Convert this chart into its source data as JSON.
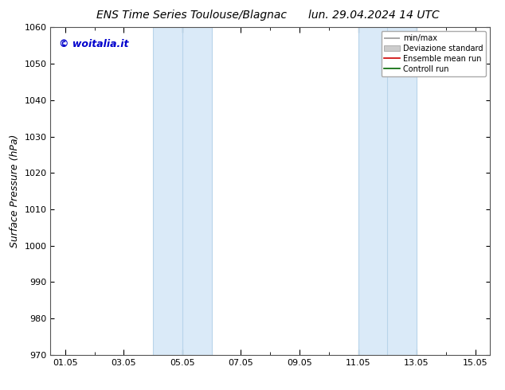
{
  "title_left": "ENS Time Series Toulouse/Blagnac",
  "title_right": "lun. 29.04.2024 14 UTC",
  "ylabel": "Surface Pressure (hPa)",
  "ylim": [
    970,
    1060
  ],
  "yticks": [
    970,
    980,
    990,
    1000,
    1010,
    1020,
    1030,
    1040,
    1050,
    1060
  ],
  "xlim": [
    0.5,
    15.5
  ],
  "xtick_labels": [
    "01.05",
    "03.05",
    "05.05",
    "07.05",
    "09.05",
    "11.05",
    "13.05",
    "15.05"
  ],
  "xtick_positions": [
    1.0,
    3.0,
    5.0,
    7.0,
    9.0,
    11.0,
    13.0,
    15.0
  ],
  "shaded_bands": [
    {
      "x_start": 4.0,
      "x_end": 5.0
    },
    {
      "x_start": 5.0,
      "x_end": 6.0
    },
    {
      "x_start": 11.0,
      "x_end": 12.0
    },
    {
      "x_start": 12.0,
      "x_end": 13.0
    }
  ],
  "shade_color": "#daeaf8",
  "band_divider_color": "#b8d4ea",
  "watermark": "© woitalia.it",
  "watermark_color": "#0000cc",
  "legend_labels": [
    "min/max",
    "Deviazione standard",
    "Ensemble mean run",
    "Controll run"
  ],
  "legend_line_color": "#999999",
  "legend_patch_color": "#cccccc",
  "legend_red": "#cc0000",
  "legend_green": "#006600",
  "background_color": "#ffffff",
  "plot_bg_color": "#ffffff",
  "title_fontsize": 10,
  "ylabel_fontsize": 9,
  "tick_fontsize": 8,
  "legend_fontsize": 7,
  "watermark_fontsize": 9
}
